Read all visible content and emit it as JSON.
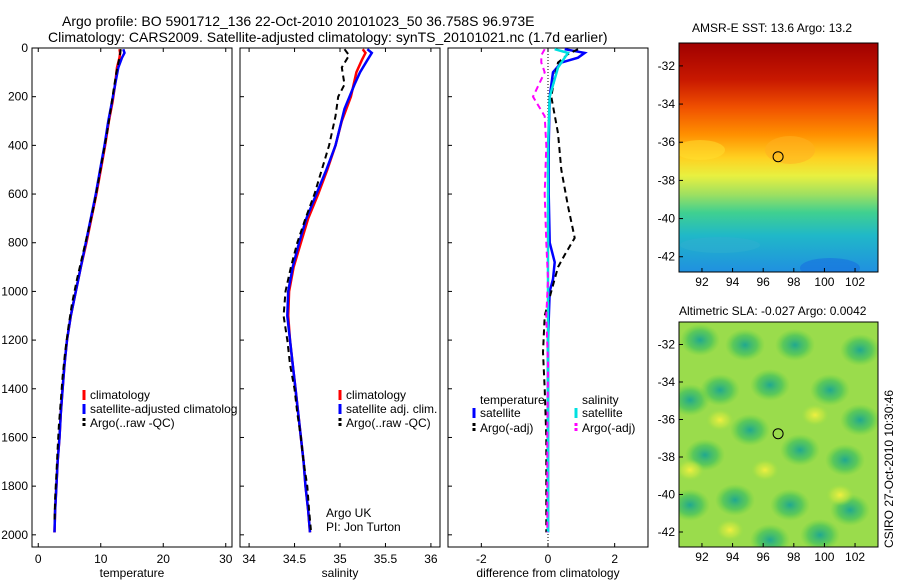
{
  "header": {
    "title_line1": "Argo profile: BO 5901712_136 22-Oct-2010 20101023_50 36.758S 96.973E",
    "title_line2": "Climatology: CARS2009. Satellite-adjusted climatology: synTS_20101021.nc (1.7d earlier)"
  },
  "colors": {
    "climatology": "#ff0000",
    "satellite": "#0000ff",
    "argo": "#000000",
    "salinity_satellite": "#00e0e0",
    "salinity_argo": "#ff00ff"
  },
  "chart_data": [
    {
      "type": "line",
      "xlabel": "temperature",
      "ylabel": "",
      "xlim": [
        -1,
        31
      ],
      "ylim": [
        2050,
        0
      ],
      "xticks": [
        0,
        10,
        20,
        30
      ],
      "yticks": [
        0,
        200,
        400,
        600,
        800,
        1000,
        1200,
        1400,
        1600,
        1800,
        2000
      ],
      "legend": [
        "climatology",
        "satellite-adjusted climatolog",
        "Argo(..raw -QC)"
      ],
      "series": [
        {
          "name": "climatology",
          "color": "#ff0000",
          "style": "solid",
          "points": [
            [
              13.0,
              5
            ],
            [
              13.1,
              20
            ],
            [
              13.0,
              40
            ],
            [
              12.6,
              80
            ],
            [
              12.3,
              150
            ],
            [
              11.9,
              220
            ],
            [
              11.3,
              300
            ],
            [
              10.7,
              400
            ],
            [
              10.0,
              500
            ],
            [
              9.3,
              600
            ],
            [
              8.5,
              700
            ],
            [
              7.7,
              800
            ],
            [
              6.8,
              900
            ],
            [
              6.0,
              1000
            ],
            [
              5.2,
              1100
            ],
            [
              4.6,
              1200
            ],
            [
              4.2,
              1300
            ],
            [
              3.9,
              1400
            ],
            [
              3.6,
              1500
            ],
            [
              3.4,
              1600
            ],
            [
              3.1,
              1700
            ],
            [
              2.9,
              1800
            ],
            [
              2.7,
              1900
            ],
            [
              2.6,
              1990
            ]
          ]
        },
        {
          "name": "satellite-adjusted climatolog",
          "color": "#0000ff",
          "style": "solid",
          "points": [
            [
              13.6,
              5
            ],
            [
              13.8,
              20
            ],
            [
              13.4,
              40
            ],
            [
              12.8,
              80
            ],
            [
              12.3,
              150
            ],
            [
              11.8,
              220
            ],
            [
              11.2,
              300
            ],
            [
              10.6,
              400
            ],
            [
              9.9,
              500
            ],
            [
              9.2,
              600
            ],
            [
              8.4,
              700
            ],
            [
              7.6,
              800
            ],
            [
              6.8,
              900
            ],
            [
              6.0,
              1000
            ],
            [
              5.2,
              1100
            ],
            [
              4.6,
              1200
            ],
            [
              4.2,
              1300
            ],
            [
              3.9,
              1400
            ],
            [
              3.6,
              1500
            ],
            [
              3.4,
              1600
            ],
            [
              3.1,
              1700
            ],
            [
              2.9,
              1800
            ],
            [
              2.7,
              1900
            ],
            [
              2.6,
              1990
            ]
          ]
        },
        {
          "name": "Argo(..raw -QC)",
          "color": "#000000",
          "style": "dashed",
          "points": [
            [
              13.2,
              5
            ],
            [
              13.0,
              40
            ],
            [
              12.5,
              100
            ],
            [
              12.0,
              180
            ],
            [
              11.6,
              250
            ],
            [
              11.0,
              350
            ],
            [
              10.3,
              450
            ],
            [
              9.6,
              550
            ],
            [
              8.9,
              650
            ],
            [
              8.0,
              750
            ],
            [
              7.1,
              850
            ],
            [
              6.2,
              950
            ],
            [
              5.4,
              1050
            ],
            [
              4.8,
              1150
            ],
            [
              4.3,
              1250
            ],
            [
              3.9,
              1350
            ],
            [
              3.6,
              1450
            ],
            [
              3.3,
              1550
            ],
            [
              3.1,
              1650
            ],
            [
              2.9,
              1750
            ],
            [
              2.7,
              1850
            ],
            [
              2.6,
              1950
            ]
          ]
        }
      ]
    },
    {
      "type": "line",
      "xlabel": "salinity",
      "xlim": [
        33.9,
        36.1
      ],
      "ylim": [
        2050,
        0
      ],
      "xticks": [
        34,
        34.5,
        35,
        35.5,
        36
      ],
      "legend": [
        "climatology",
        "satellite adj. clim.",
        "Argo(..raw -QC)"
      ],
      "annotation": [
        "Argo UK",
        "PI: Jon Turton"
      ],
      "series": [
        {
          "name": "climatology",
          "color": "#ff0000",
          "style": "solid",
          "points": [
            [
              35.25,
              5
            ],
            [
              35.28,
              20
            ],
            [
              35.24,
              50
            ],
            [
              35.18,
              100
            ],
            [
              35.12,
              200
            ],
            [
              35.02,
              300
            ],
            [
              34.95,
              400
            ],
            [
              34.86,
              500
            ],
            [
              34.76,
              600
            ],
            [
              34.65,
              700
            ],
            [
              34.57,
              800
            ],
            [
              34.49,
              900
            ],
            [
              34.44,
              1000
            ],
            [
              34.43,
              1100
            ],
            [
              34.45,
              1200
            ],
            [
              34.48,
              1300
            ],
            [
              34.51,
              1400
            ],
            [
              34.54,
              1500
            ],
            [
              34.57,
              1600
            ],
            [
              34.6,
              1700
            ],
            [
              34.62,
              1800
            ],
            [
              34.65,
              1900
            ],
            [
              34.67,
              1990
            ]
          ]
        },
        {
          "name": "satellite adj. clim.",
          "color": "#0000ff",
          "style": "solid",
          "points": [
            [
              35.3,
              5
            ],
            [
              35.35,
              20
            ],
            [
              35.3,
              50
            ],
            [
              35.22,
              100
            ],
            [
              35.16,
              150
            ],
            [
              35.05,
              250
            ],
            [
              34.95,
              400
            ],
            [
              34.85,
              500
            ],
            [
              34.74,
              600
            ],
            [
              34.63,
              700
            ],
            [
              34.55,
              800
            ],
            [
              34.48,
              900
            ],
            [
              34.43,
              1000
            ],
            [
              34.42,
              1100
            ],
            [
              34.45,
              1200
            ],
            [
              34.48,
              1300
            ],
            [
              34.51,
              1400
            ],
            [
              34.54,
              1500
            ],
            [
              34.57,
              1600
            ],
            [
              34.6,
              1700
            ],
            [
              34.62,
              1800
            ],
            [
              34.65,
              1900
            ],
            [
              34.67,
              1990
            ]
          ]
        },
        {
          "name": "Argo(..raw -QC)",
          "color": "#000000",
          "style": "dashed",
          "points": [
            [
              35.05,
              5
            ],
            [
              35.1,
              30
            ],
            [
              35.02,
              80
            ],
            [
              35.05,
              150
            ],
            [
              34.98,
              200
            ],
            [
              34.95,
              280
            ],
            [
              34.88,
              400
            ],
            [
              34.8,
              500
            ],
            [
              34.72,
              600
            ],
            [
              34.62,
              700
            ],
            [
              34.53,
              800
            ],
            [
              34.46,
              900
            ],
            [
              34.4,
              1000
            ],
            [
              34.38,
              1100
            ],
            [
              34.42,
              1200
            ],
            [
              34.45,
              1300
            ],
            [
              34.5,
              1400
            ],
            [
              34.53,
              1500
            ],
            [
              34.57,
              1600
            ],
            [
              34.6,
              1700
            ],
            [
              34.64,
              1800
            ],
            [
              34.66,
              1900
            ],
            [
              34.68,
              1980
            ]
          ]
        }
      ]
    },
    {
      "type": "line",
      "xlabel": "difference from climatology",
      "xlim": [
        -3,
        3
      ],
      "ylim": [
        2050,
        0
      ],
      "xticks": [
        -2,
        0,
        2
      ],
      "legend_left": {
        "title": "temperature",
        "items": [
          "satellite",
          "Argo(-adj)"
        ]
      },
      "legend_right": {
        "title": "salinity",
        "items": [
          "satellite",
          "Argo(-adj)"
        ]
      },
      "series": [
        {
          "name": "temperature satellite",
          "color": "#0000ff",
          "style": "solid",
          "points": [
            [
              0.5,
              5
            ],
            [
              1.1,
              20
            ],
            [
              0.9,
              40
            ],
            [
              0.4,
              60
            ],
            [
              0.15,
              100
            ],
            [
              0.05,
              200
            ],
            [
              0.02,
              400
            ],
            [
              0.02,
              600
            ],
            [
              0.05,
              800
            ],
            [
              0.2,
              880
            ],
            [
              0.15,
              950
            ],
            [
              0.05,
              1000
            ],
            [
              0.0,
              1200
            ],
            [
              0.0,
              1600
            ],
            [
              0.0,
              1990
            ]
          ]
        },
        {
          "name": "temperature Argo(-adj)",
          "color": "#000000",
          "style": "dashed",
          "points": [
            [
              0.9,
              5
            ],
            [
              0.6,
              25
            ],
            [
              0.3,
              60
            ],
            [
              0.2,
              120
            ],
            [
              0.1,
              200
            ],
            [
              0.3,
              350
            ],
            [
              0.4,
              500
            ],
            [
              0.6,
              650
            ],
            [
              0.8,
              780
            ],
            [
              0.5,
              850
            ],
            [
              0.3,
              900
            ],
            [
              0.1,
              1000
            ],
            [
              -0.1,
              1100
            ],
            [
              -0.15,
              1250
            ],
            [
              -0.1,
              1400
            ],
            [
              -0.05,
              1600
            ],
            [
              -0.05,
              1990
            ]
          ]
        },
        {
          "name": "salinity satellite",
          "color": "#00e0e0",
          "style": "solid",
          "points": [
            [
              0.2,
              5
            ],
            [
              0.6,
              20
            ],
            [
              0.5,
              40
            ],
            [
              0.3,
              80
            ],
            [
              0.05,
              200
            ],
            [
              0.0,
              400
            ],
            [
              0.0,
              800
            ],
            [
              0.0,
              1200
            ],
            [
              0.0,
              1600
            ],
            [
              0.0,
              1990
            ]
          ]
        },
        {
          "name": "salinity Argo(-adj)",
          "color": "#ff00ff",
          "style": "dashed",
          "points": [
            [
              -0.1,
              5
            ],
            [
              -0.2,
              30
            ],
            [
              -0.2,
              60
            ],
            [
              -0.1,
              100
            ],
            [
              -0.45,
              200
            ],
            [
              -0.1,
              280
            ],
            [
              -0.05,
              400
            ],
            [
              -0.1,
              600
            ],
            [
              -0.05,
              800
            ],
            [
              0.0,
              950
            ],
            [
              -0.05,
              1100
            ],
            [
              0.0,
              1300
            ],
            [
              -0.02,
              1600
            ],
            [
              -0.02,
              1990
            ]
          ]
        }
      ]
    },
    {
      "type": "heatmap",
      "title": "AMSR-E SST: 13.6 Argo: 13.2",
      "xlim": [
        90.5,
        103.5
      ],
      "ylim": [
        -42.8,
        -30.8
      ],
      "xticks": [
        92,
        94,
        96,
        98,
        100,
        102
      ],
      "yticks": [
        -32,
        -34,
        -36,
        -38,
        -40,
        -42
      ],
      "marker": {
        "lon": 96.973,
        "lat": -36.758
      }
    },
    {
      "type": "heatmap",
      "title": "Altimetric SLA: -0.027 Argo: 0.0042",
      "xlim": [
        90.5,
        103.5
      ],
      "ylim": [
        -42.8,
        -30.8
      ],
      "xticks": [
        92,
        94,
        96,
        98,
        100,
        102
      ],
      "yticks": [
        -32,
        -34,
        -36,
        -38,
        -40,
        -42
      ],
      "marker": {
        "lon": 96.973,
        "lat": -36.758
      },
      "side_label": "CSIRO 27-Oct-2010 10:30:46"
    }
  ]
}
